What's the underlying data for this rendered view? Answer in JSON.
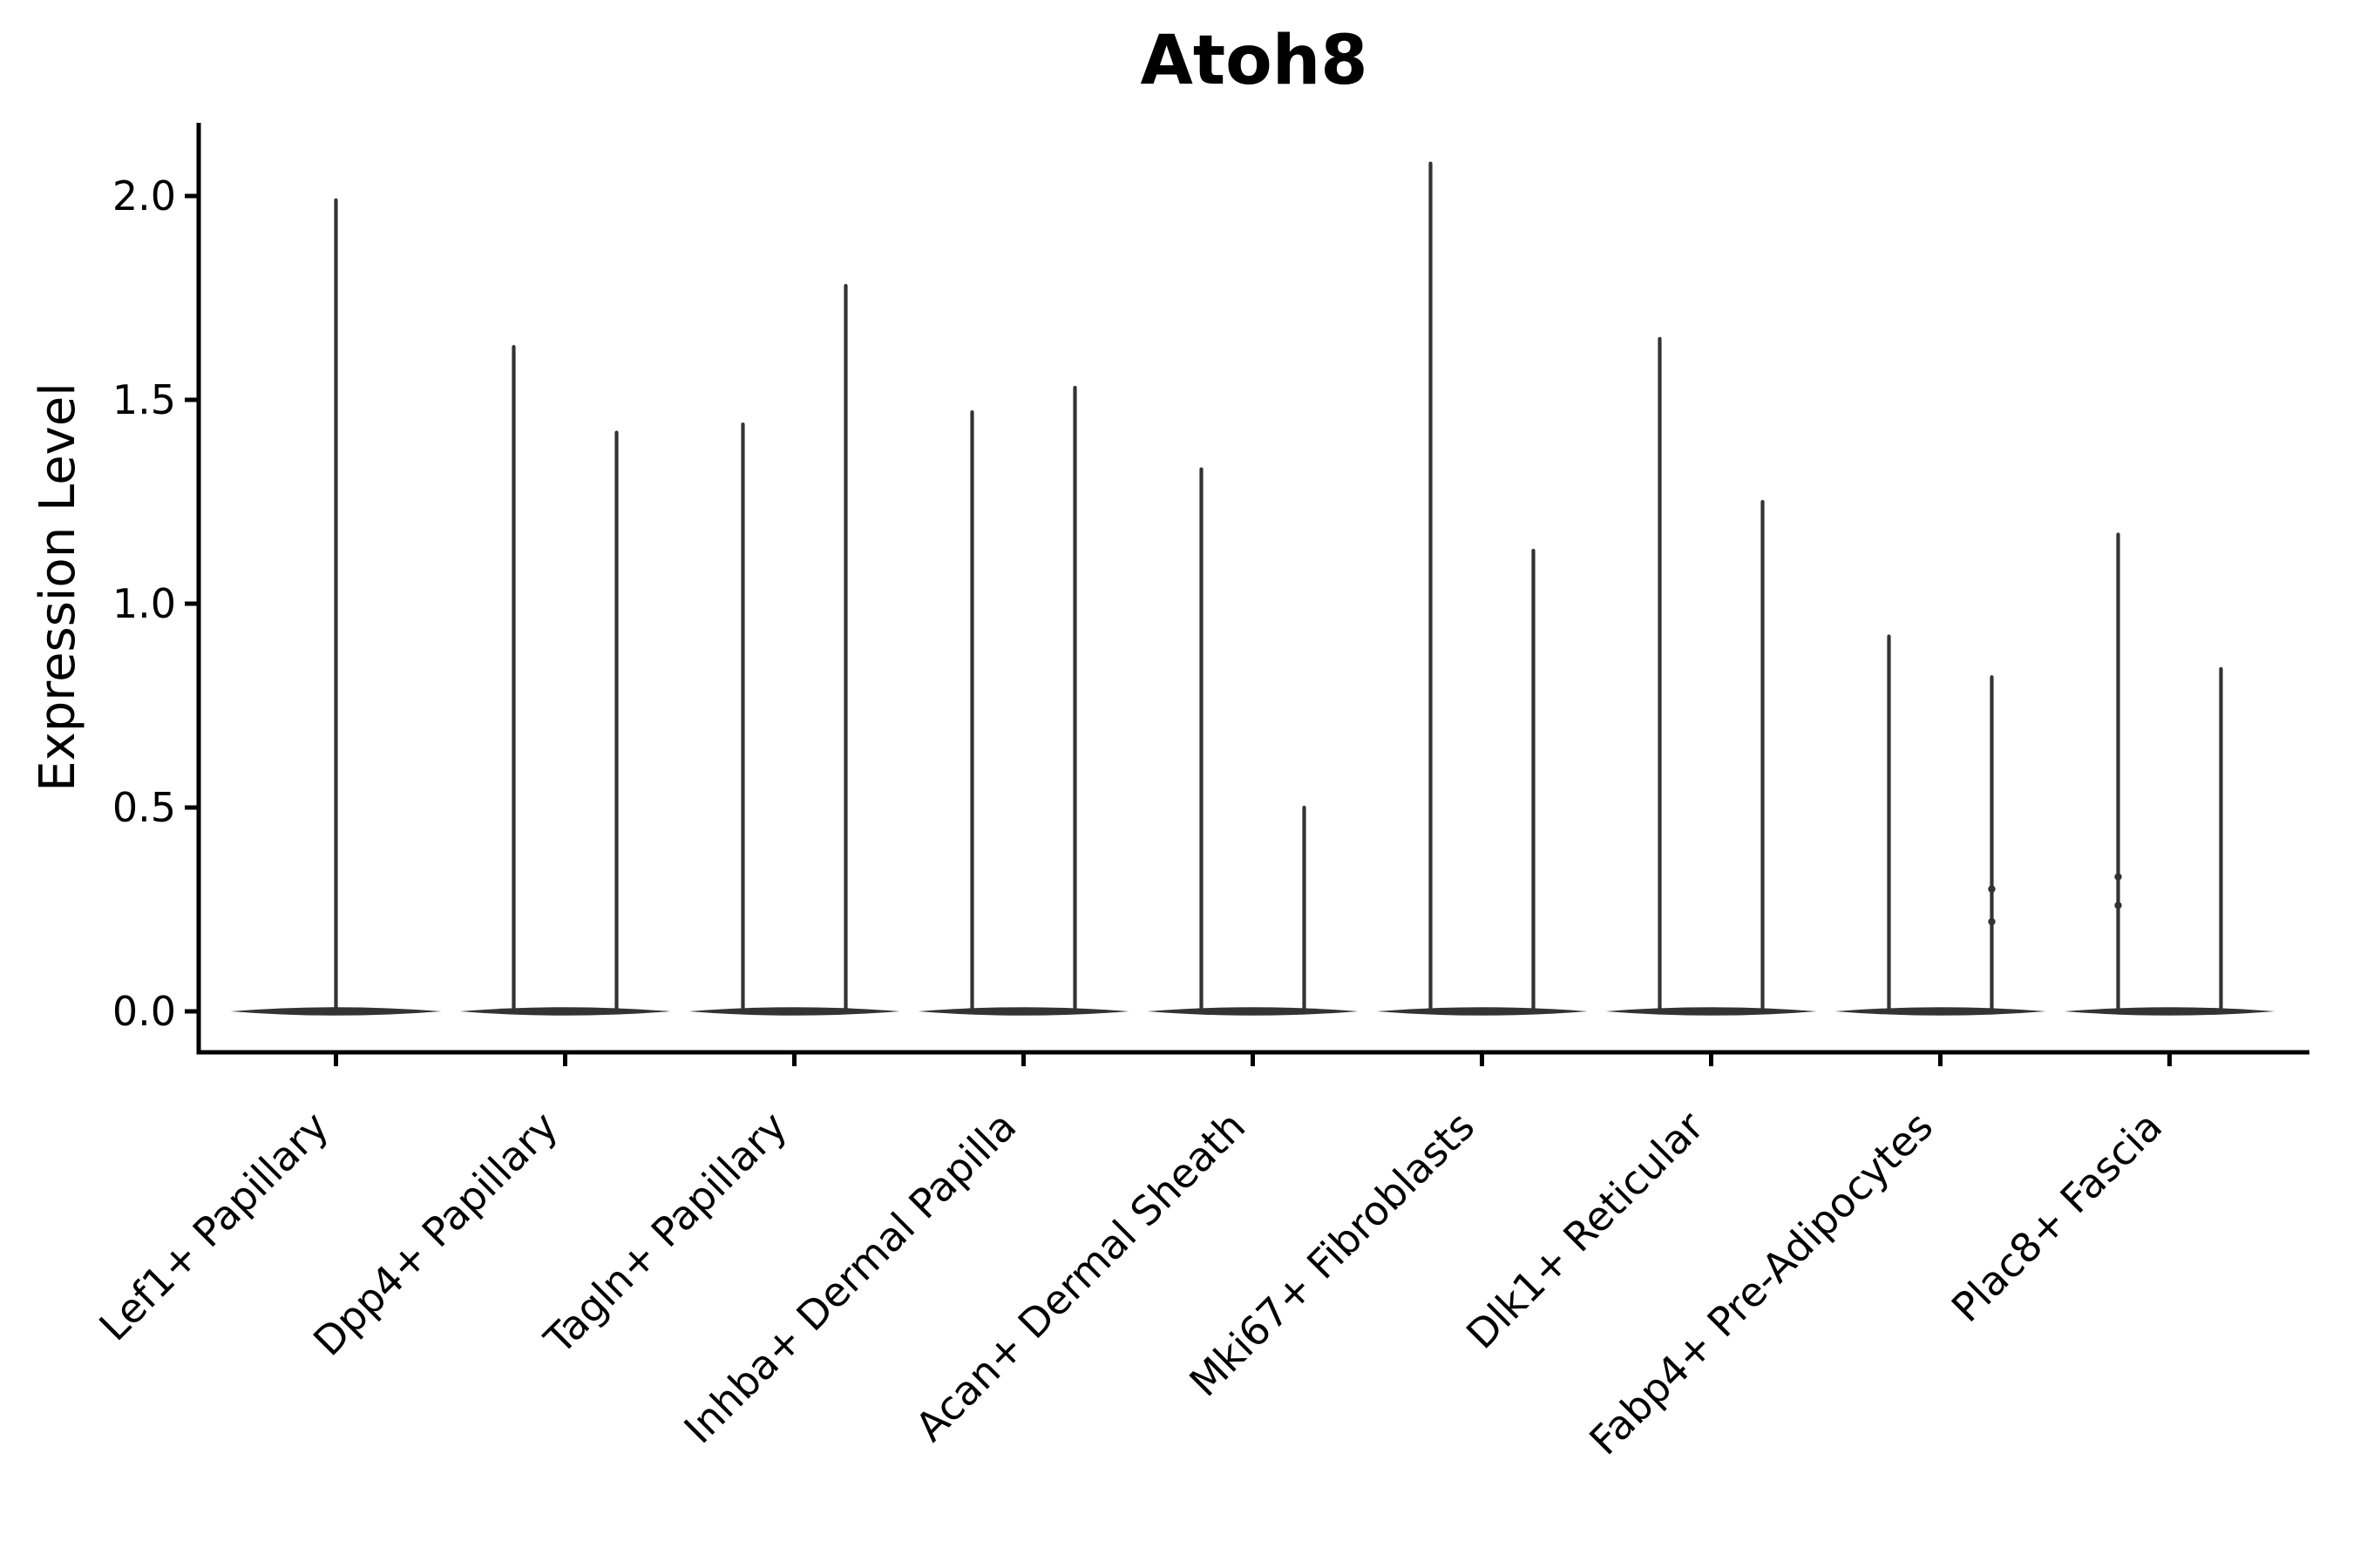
{
  "chart_data": {
    "type": "violin",
    "title": "Atoh8",
    "ylabel": "Expression Level",
    "xlabel": "",
    "grid": false,
    "legend": null,
    "ylim": [
      -0.1,
      2.18
    ],
    "yticks": [
      {
        "value": 0.0,
        "label": "0.0"
      },
      {
        "value": 0.5,
        "label": "0.5"
      },
      {
        "value": 1.0,
        "label": "1.0"
      },
      {
        "value": 1.5,
        "label": "1.5"
      },
      {
        "value": 2.0,
        "label": "2.0"
      }
    ],
    "categories": [
      "Lef1+ Papillary",
      "Dpp4+ Papillary",
      "Tagln+ Papillary",
      "Inhba+ Dermal Papilla",
      "Acan+ Dermal Sheath",
      "Mki67+ Fibroblasts",
      "Dlk1+ Reticular",
      "Fabp4+ Pre-Adipocytes",
      "Plac8+ Fascia"
    ],
    "series": [
      {
        "category": "Lef1+ Papillary",
        "violin_maxima": [
          1.99
        ],
        "baseline_value": 0.0
      },
      {
        "category": "Dpp4+ Papillary",
        "violin_maxima": [
          1.63,
          1.42
        ],
        "baseline_value": 0.0
      },
      {
        "category": "Tagln+ Papillary",
        "violin_maxima": [
          1.44,
          1.78
        ],
        "baseline_value": 0.0
      },
      {
        "category": "Inhba+ Dermal Papilla",
        "violin_maxima": [
          1.47,
          1.53
        ],
        "baseline_value": 0.0
      },
      {
        "category": "Acan+ Dermal Sheath",
        "violin_maxima": [
          1.33,
          0.5
        ],
        "baseline_value": 0.0
      },
      {
        "category": "Mki67+ Fibroblasts",
        "violin_maxima": [
          2.08,
          1.13
        ],
        "baseline_value": 0.0
      },
      {
        "category": "Dlk1+ Reticular",
        "violin_maxima": [
          1.65,
          1.25
        ],
        "baseline_value": 0.0
      },
      {
        "category": "Fabp4+ Pre-Adipocytes",
        "violin_maxima": [
          0.92,
          0.82
        ],
        "baseline_value": 0.0
      },
      {
        "category": "Plac8+ Fascia",
        "violin_maxima": [
          1.17,
          0.84
        ],
        "baseline_value": 0.0
      }
    ],
    "point_overlays": [
      {
        "category_index": 7,
        "violin_index": 1,
        "values": [
          0.3,
          0.22
        ]
      },
      {
        "category_index": 8,
        "violin_index": 0,
        "values": [
          0.33,
          0.26
        ]
      }
    ],
    "colors": {
      "violin": "#333333",
      "axis": "#000000",
      "text": "#000000",
      "background": "#ffffff"
    }
  }
}
